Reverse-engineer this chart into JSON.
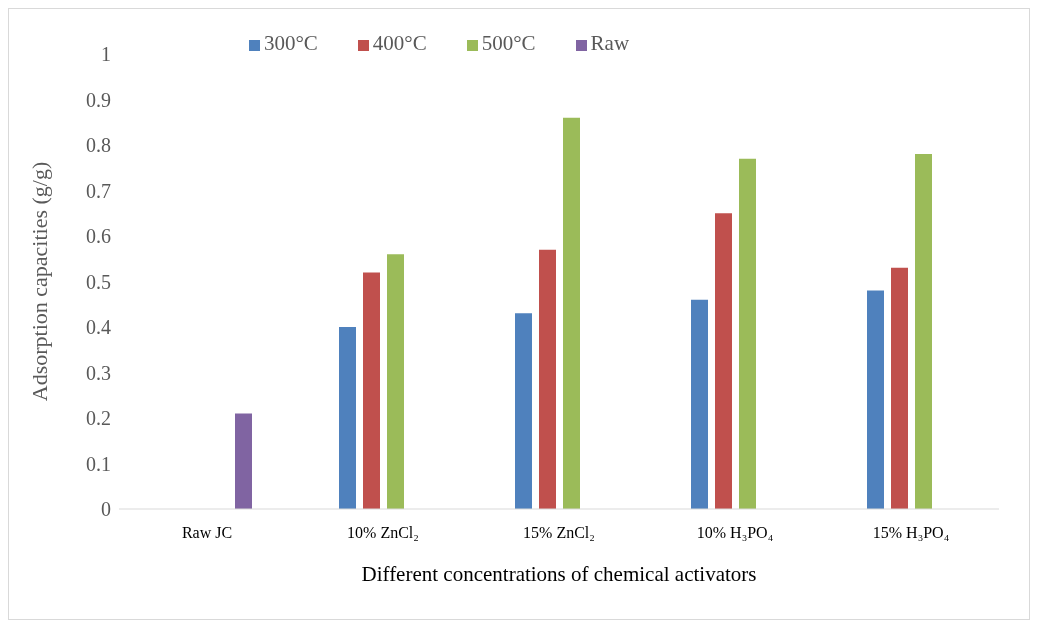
{
  "chart_data": {
    "type": "bar",
    "xlabel": "Different concentrations of chemical activators",
    "ylabel": "Adsorption capacities (g/g)",
    "categories": [
      "Raw JC",
      "10% ZnCl₂",
      "15% ZnCl₂",
      "10% H₃PO₄",
      "15% H₃PO₄"
    ],
    "series": [
      {
        "name": "300°C",
        "color": "#4f81bd",
        "values": [
          null,
          0.4,
          0.43,
          0.46,
          0.48
        ]
      },
      {
        "name": "400°C",
        "color": "#c0504d",
        "values": [
          null,
          0.52,
          0.57,
          0.65,
          0.53
        ]
      },
      {
        "name": "500°C",
        "color": "#9bbb59",
        "values": [
          null,
          0.56,
          0.86,
          0.77,
          0.78
        ]
      },
      {
        "name": "Raw",
        "color": "#8064a2",
        "values": [
          0.21,
          null,
          null,
          null,
          null
        ]
      }
    ],
    "ylim": [
      0,
      1
    ],
    "yticks": [
      0,
      0.1,
      0.2,
      0.3,
      0.4,
      0.5,
      0.6,
      0.7,
      0.8,
      0.9,
      1
    ],
    "grid": false,
    "legend": "top"
  }
}
